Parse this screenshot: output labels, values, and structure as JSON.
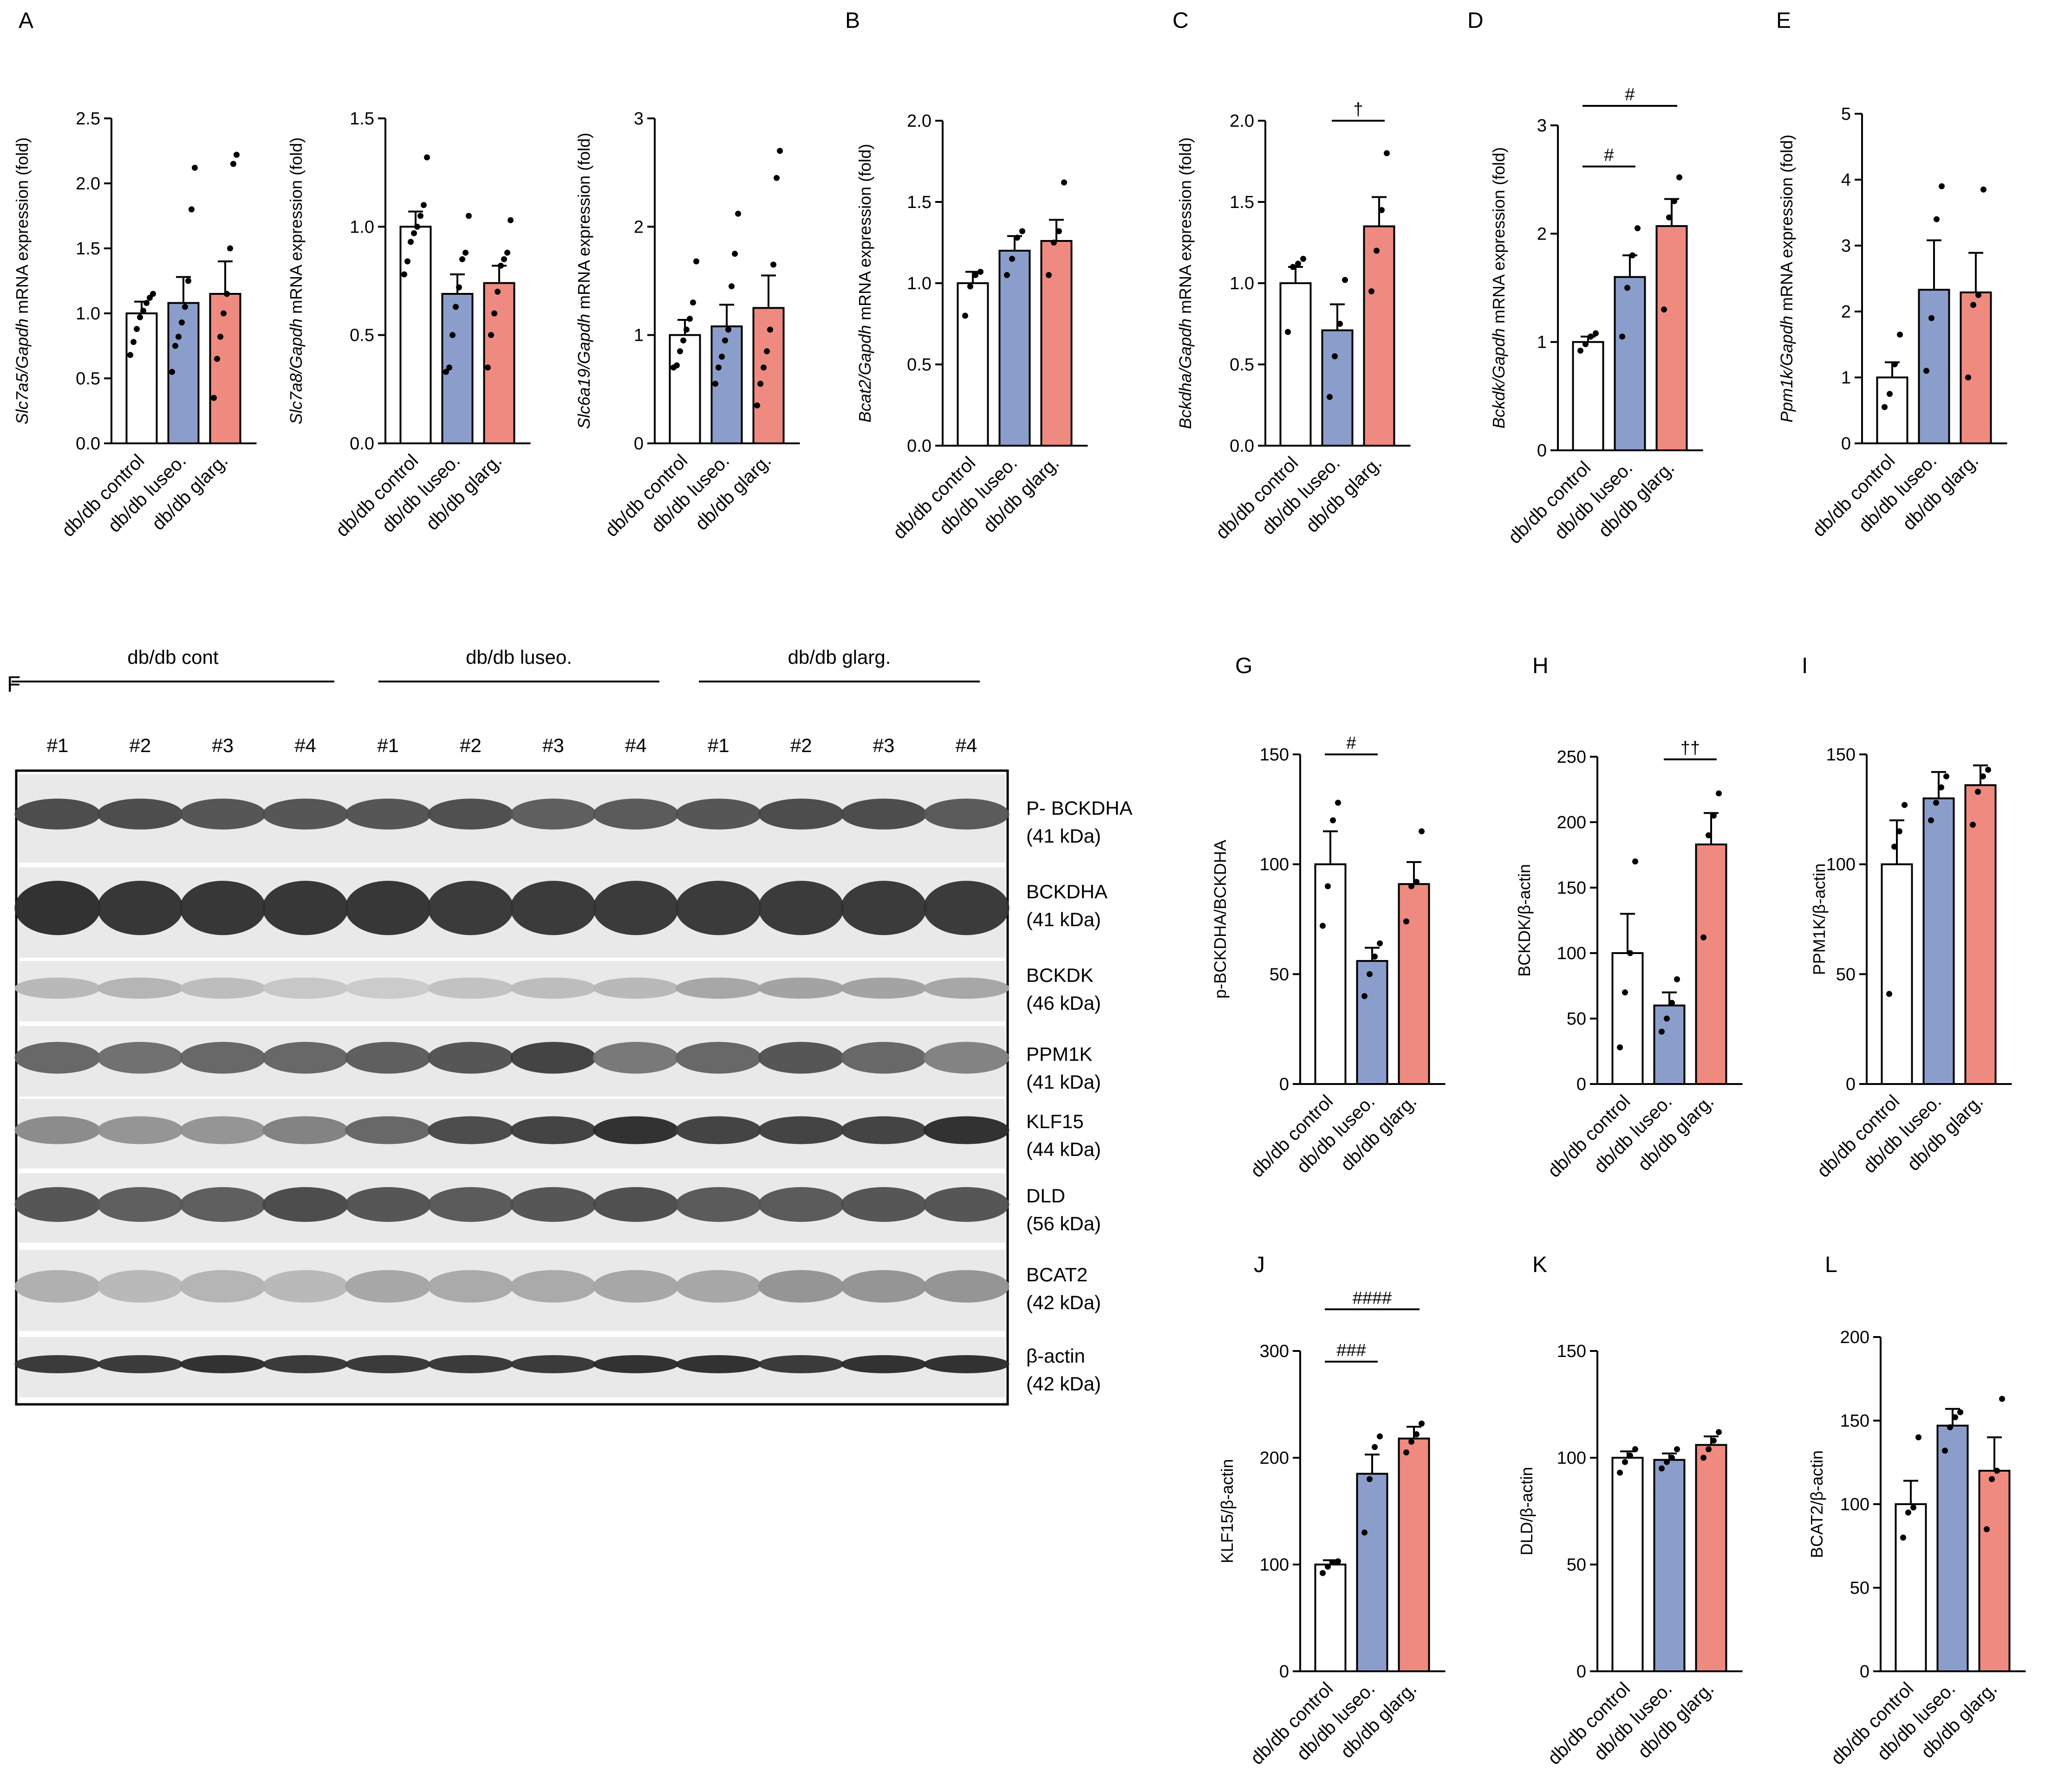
{
  "colors": {
    "control": "#ffffff",
    "luseo": "#8b9ecb",
    "glarg": "#ef8a80",
    "line": "#000000"
  },
  "chart_data": [
    {
      "panel": "A",
      "type": "bar",
      "ylabel_gene": "Slc7a5/Gapdh",
      "ylabel_suffix": " mRNA expression (fold)",
      "yticks": [
        "0.0",
        "0.5",
        "1.0",
        "1.5",
        "2.0",
        "2.5"
      ],
      "ylim": [
        0,
        2.5
      ],
      "categories": [
        "db/db control",
        "db/db luseo.",
        "db/db glarg."
      ],
      "values": [
        1.0,
        1.08,
        1.15
      ],
      "errors": [
        0.09,
        0.2,
        0.25
      ],
      "points": [
        [
          0.68,
          0.78,
          0.88,
          0.97,
          1.02,
          1.08,
          1.12,
          1.15
        ],
        [
          0.55,
          0.75,
          0.82,
          0.93,
          1.05,
          1.25,
          1.8,
          2.12
        ],
        [
          0.35,
          0.65,
          0.82,
          1.0,
          1.15,
          1.5,
          2.15,
          2.22
        ]
      ],
      "annotations": []
    },
    {
      "panel": "",
      "type": "bar",
      "ylabel_gene": "Slc7a8/Gapdh",
      "ylabel_suffix": " mRNA expression (fold)",
      "yticks": [
        "0.0",
        "0.5",
        "1.0",
        "1.5"
      ],
      "ylim": [
        0,
        1.5
      ],
      "categories": [
        "db/db control",
        "db/db luseo.",
        "db/db glarg."
      ],
      "values": [
        1.0,
        0.69,
        0.74
      ],
      "errors": [
        0.07,
        0.09,
        0.08
      ],
      "points": [
        [
          0.78,
          0.84,
          0.93,
          0.97,
          1.0,
          1.05,
          1.1,
          1.32
        ],
        [
          0.33,
          0.35,
          0.5,
          0.63,
          0.72,
          0.85,
          0.88,
          1.05
        ],
        [
          0.35,
          0.5,
          0.6,
          0.7,
          0.82,
          0.85,
          0.88,
          1.03
        ]
      ],
      "annotations": []
    },
    {
      "panel": "",
      "type": "bar",
      "ylabel_gene": "Slc6a19/Gapdh",
      "ylabel_suffix": " mRNA expression (fold)",
      "yticks": [
        "0",
        "1",
        "2",
        "3"
      ],
      "ylim": [
        0,
        3
      ],
      "categories": [
        "db/db control",
        "db/db luseo.",
        "db/db glarg."
      ],
      "values": [
        1.0,
        1.08,
        1.25
      ],
      "errors": [
        0.14,
        0.2,
        0.3
      ],
      "points": [
        [
          0.7,
          0.72,
          0.85,
          0.95,
          1.05,
          1.15,
          1.3,
          1.68
        ],
        [
          0.55,
          0.7,
          0.8,
          0.95,
          1.05,
          1.45,
          1.75,
          2.12
        ],
        [
          0.35,
          0.55,
          0.7,
          0.85,
          1.05,
          1.65,
          2.45,
          2.7
        ]
      ],
      "annotations": []
    },
    {
      "panel": "B",
      "type": "bar",
      "ylabel_gene": "Bcat2/Gapdh",
      "ylabel_suffix": " mRNA expression (fold)",
      "yticks": [
        "0.0",
        "0.5",
        "1.0",
        "1.5",
        "2.0"
      ],
      "ylim": [
        0,
        2.0
      ],
      "categories": [
        "db/db control",
        "db/db luseo.",
        "db/db glarg."
      ],
      "values": [
        1.0,
        1.2,
        1.26
      ],
      "errors": [
        0.07,
        0.09,
        0.13
      ],
      "points": [
        [
          0.8,
          0.98,
          1.05,
          1.07
        ],
        [
          1.05,
          1.15,
          1.28,
          1.32
        ],
        [
          1.05,
          1.25,
          1.32,
          1.62
        ]
      ],
      "annotations": []
    },
    {
      "panel": "C",
      "type": "bar",
      "ylabel_gene": "Bckdha/Gapdh",
      "ylabel_suffix": " mRNA expression (fold)",
      "yticks": [
        "0.0",
        "0.5",
        "1.0",
        "1.5",
        "2.0"
      ],
      "ylim": [
        0,
        2.0
      ],
      "categories": [
        "db/db control",
        "db/db luseo.",
        " db/db glarg."
      ],
      "values": [
        1.0,
        0.71,
        1.35
      ],
      "errors": [
        0.1,
        0.16,
        0.18
      ],
      "points": [
        [
          0.7,
          1.1,
          1.12,
          1.15
        ],
        [
          0.3,
          0.55,
          0.75,
          1.02
        ],
        [
          0.95,
          1.2,
          1.45,
          1.8
        ]
      ],
      "annotations": [
        {
          "text": "†",
          "from": 1,
          "to": 2,
          "level": 2.0
        }
      ]
    },
    {
      "panel": "D",
      "type": "bar",
      "ylabel_gene": "Bckdk/Gapdh",
      "ylabel_suffix": " mRNA expression (fold)",
      "yticks": [
        "0",
        "1",
        "2",
        "3"
      ],
      "ylim": [
        0,
        3
      ],
      "categories": [
        "db/db control",
        "db/db luseo.",
        "db/db glarg."
      ],
      "values": [
        1.0,
        1.6,
        2.07
      ],
      "errors": [
        0.05,
        0.2,
        0.25
      ],
      "points": [
        [
          0.92,
          0.98,
          1.05,
          1.08
        ],
        [
          1.05,
          1.5,
          1.8,
          2.05
        ],
        [
          1.3,
          2.15,
          2.3,
          2.52
        ]
      ],
      "annotations": [
        {
          "text": "#",
          "from": 0,
          "to": 1,
          "level": 2.62
        },
        {
          "text": "#",
          "from": 0,
          "to": 2,
          "level": 3.18
        }
      ]
    },
    {
      "panel": "E",
      "type": "bar",
      "ylabel_gene": "Ppm1k/Gapdh",
      "ylabel_suffix": " mRNA expression (fold)",
      "yticks": [
        "0",
        "1",
        "2",
        "3",
        "4",
        "5"
      ],
      "ylim": [
        0,
        5
      ],
      "categories": [
        "db/db control",
        "db/db luseo.",
        "db/db glarg."
      ],
      "values": [
        1.0,
        2.33,
        2.29
      ],
      "errors": [
        0.23,
        0.75,
        0.6
      ],
      "points": [
        [
          0.55,
          0.75,
          1.2,
          1.65
        ],
        [
          1.1,
          1.9,
          3.4,
          3.9
        ],
        [
          1.0,
          2.1,
          2.25,
          3.85
        ]
      ],
      "annotations": []
    },
    {
      "panel": "G",
      "type": "bar",
      "ylabel": "p-BCKDHA/BCKDHA",
      "yticks": [
        "0",
        "50",
        "100",
        "150"
      ],
      "ylim": [
        0,
        150
      ],
      "categories": [
        "db/db control",
        "db/db luseo.",
        "db/db glarg."
      ],
      "values": [
        100,
        56,
        91
      ],
      "errors": [
        15,
        6,
        10
      ],
      "points": [
        [
          72,
          90,
          120,
          128
        ],
        [
          40,
          50,
          58,
          64
        ],
        [
          74,
          90,
          92,
          115
        ]
      ],
      "annotations": [
        {
          "text": "#",
          "from": 0,
          "to": 1,
          "level": 150
        }
      ]
    },
    {
      "panel": "H",
      "type": "bar",
      "ylabel": "BCKDK/β-actin",
      "yticks": [
        "0",
        "50",
        "100",
        "150",
        "200",
        "250"
      ],
      "ylim": [
        0,
        250
      ],
      "categories": [
        "db/db control",
        "db/db luseo.",
        "db/db glarg."
      ],
      "values": [
        100,
        60,
        183
      ],
      "errors": [
        30,
        10,
        24
      ],
      "points": [
        [
          28,
          70,
          100,
          170
        ],
        [
          40,
          50,
          62,
          80
        ],
        [
          112,
          190,
          205,
          222
        ]
      ],
      "annotations": [
        {
          "text": "††",
          "from": 1,
          "to": 2,
          "level": 248
        }
      ]
    },
    {
      "panel": "I",
      "type": "bar",
      "ylabel": "PPM1K/β-actin",
      "yticks": [
        "0",
        "50",
        "100",
        "150"
      ],
      "ylim": [
        0,
        150
      ],
      "categories": [
        "db/db control",
        "db/db luseo.",
        "db/db glarg."
      ],
      "values": [
        100,
        130,
        136
      ],
      "errors": [
        20,
        12,
        9
      ],
      "points": [
        [
          41,
          108,
          115,
          127
        ],
        [
          120,
          128,
          135,
          140
        ],
        [
          118,
          133,
          140,
          143
        ]
      ],
      "annotations": []
    },
    {
      "panel": "J",
      "type": "bar",
      "ylabel": "KLF15/β-actin",
      "yticks": [
        "0",
        "100",
        "200",
        "300"
      ],
      "ylim": [
        0,
        300
      ],
      "categories": [
        "db/db control",
        "db/db luseo.",
        "db/db glarg."
      ],
      "values": [
        100,
        185,
        218
      ],
      "errors": [
        4,
        18,
        11
      ],
      "points": [
        [
          92,
          98,
          102,
          103
        ],
        [
          130,
          180,
          210,
          220
        ],
        [
          205,
          215,
          222,
          232
        ]
      ],
      "annotations": [
        {
          "text": "###",
          "from": 0,
          "to": 1,
          "level": 290
        },
        {
          "text": "####",
          "from": 0,
          "to": 2,
          "level": 339
        }
      ]
    },
    {
      "panel": "K",
      "type": "bar",
      "ylabel": "DLD/β-actin",
      "yticks": [
        "0",
        "50",
        "100",
        "150"
      ],
      "ylim": [
        0,
        150
      ],
      "categories": [
        "db/db control",
        "db/db luseo.",
        "db/db glarg."
      ],
      "values": [
        100,
        99,
        106
      ],
      "errors": [
        3,
        3,
        4
      ],
      "points": [
        [
          93,
          98,
          101,
          104
        ],
        [
          95,
          98,
          100,
          104
        ],
        [
          100,
          104,
          108,
          112
        ]
      ],
      "annotations": []
    },
    {
      "panel": "L",
      "type": "bar",
      "ylabel": "BCAT2/β-actin",
      "yticks": [
        "0",
        "50",
        "100",
        "150",
        "200"
      ],
      "ylim": [
        0,
        200
      ],
      "categories": [
        "db/db control",
        "db/db luseo.",
        "db/db glarg."
      ],
      "values": [
        100,
        147,
        120
      ],
      "errors": [
        14,
        10,
        20
      ],
      "points": [
        [
          80,
          95,
          98,
          140
        ],
        [
          132,
          146,
          152,
          155
        ],
        [
          85,
          115,
          120,
          163
        ]
      ],
      "annotations": []
    }
  ],
  "blot": {
    "panel": "F",
    "groups": [
      "db/db cont",
      "db/db luseo.",
      "db/db glarg."
    ],
    "lanes": [
      "#1",
      "#2",
      "#3",
      "#4",
      "#1",
      "#2",
      "#3",
      "#4",
      "#1",
      "#2",
      "#3",
      "#4"
    ],
    "rows": [
      {
        "name": "P- BCKDHA",
        "size": "(41 kDa)",
        "intensity": [
          0.8,
          0.8,
          0.75,
          0.75,
          0.75,
          0.78,
          0.7,
          0.72,
          0.75,
          0.8,
          0.8,
          0.72
        ],
        "band_height": 0.35
      },
      {
        "name": "BCKDHA",
        "size": "(41 kDa)",
        "intensity": [
          0.95,
          0.92,
          0.92,
          0.92,
          0.92,
          0.9,
          0.9,
          0.9,
          0.9,
          0.9,
          0.9,
          0.9
        ],
        "band_height": 0.6
      },
      {
        "name": "BCKDK",
        "size": "(46 kDa)",
        "intensity": [
          0.2,
          0.22,
          0.18,
          0.12,
          0.1,
          0.15,
          0.18,
          0.2,
          0.3,
          0.32,
          0.32,
          0.3
        ],
        "band_height": 0.35
      },
      {
        "name": "PPM1K",
        "size": "(41 kDa)",
        "intensity": [
          0.65,
          0.6,
          0.65,
          0.65,
          0.7,
          0.75,
          0.85,
          0.55,
          0.65,
          0.75,
          0.65,
          0.5
        ],
        "band_height": 0.45
      },
      {
        "name": "KLF15",
        "size": "(44 kDa)",
        "intensity": [
          0.45,
          0.4,
          0.4,
          0.5,
          0.65,
          0.8,
          0.85,
          0.95,
          0.85,
          0.85,
          0.85,
          0.95
        ],
        "band_height": 0.4
      },
      {
        "name": "DLD",
        "size": "(56 kDa)",
        "intensity": [
          0.75,
          0.7,
          0.7,
          0.8,
          0.75,
          0.72,
          0.75,
          0.78,
          0.72,
          0.72,
          0.75,
          0.75
        ],
        "band_height": 0.5
      },
      {
        "name": "BCAT2",
        "size": "(42 kDa)",
        "intensity": [
          0.25,
          0.2,
          0.22,
          0.2,
          0.3,
          0.28,
          0.28,
          0.3,
          0.3,
          0.4,
          0.4,
          0.4
        ],
        "band_height": 0.4
      },
      {
        "name": "β-actin",
        "size": "(42 kDa)",
        "intensity": [
          0.9,
          0.9,
          0.95,
          0.9,
          0.9,
          0.9,
          0.9,
          0.95,
          0.95,
          0.9,
          0.95,
          0.95
        ],
        "band_height": 0.3
      }
    ]
  }
}
